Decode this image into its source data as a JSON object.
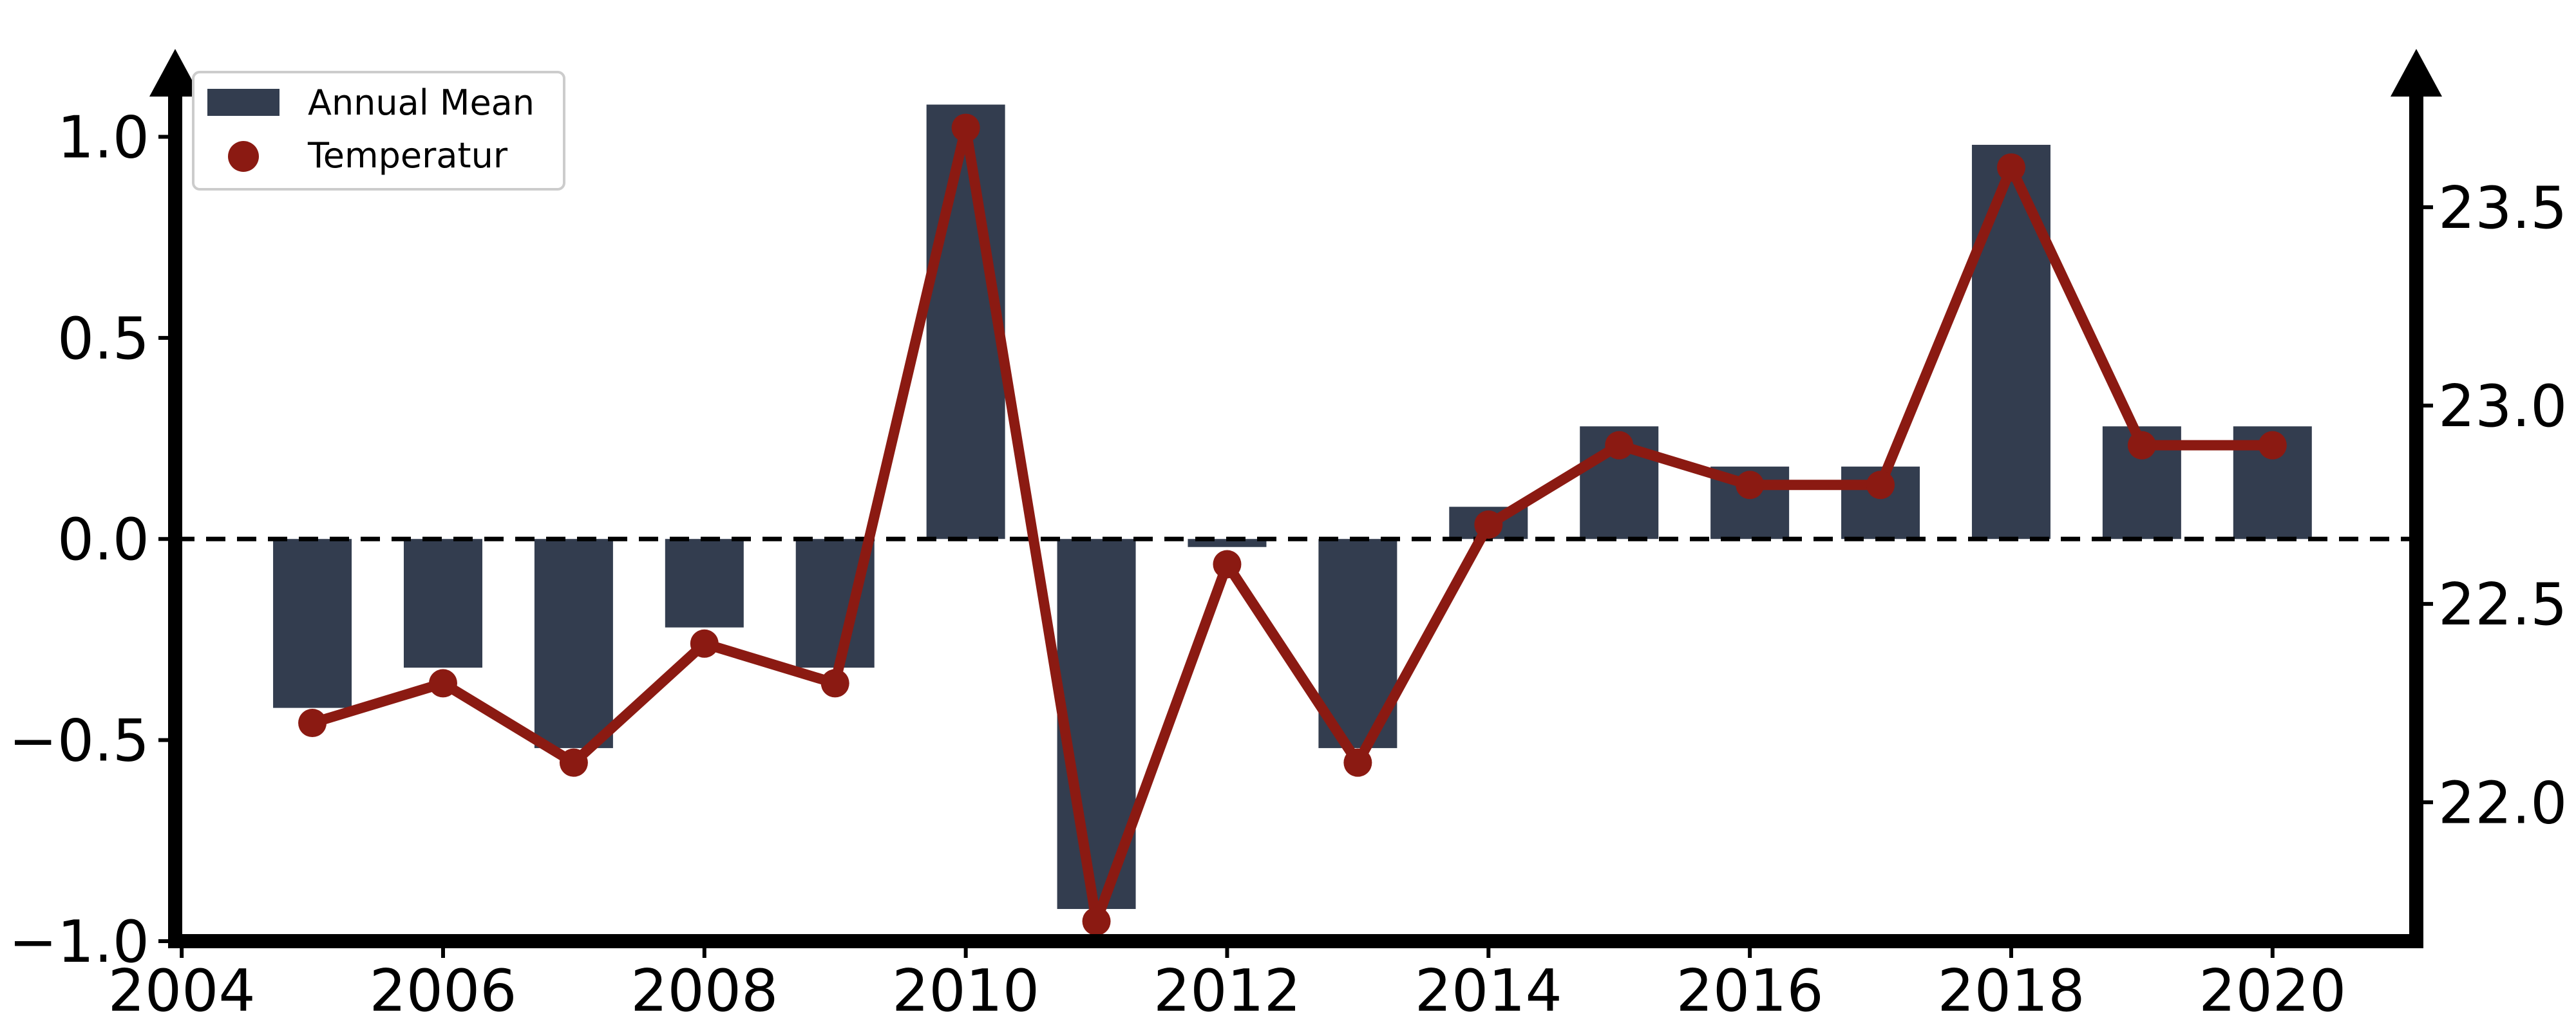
{
  "chart_data": {
    "type": "bar",
    "title": "",
    "xlabel": "",
    "ylabel": "",
    "y2label": "",
    "x": [
      2005,
      2006,
      2007,
      2008,
      2009,
      2010,
      2011,
      2012,
      2013,
      2014,
      2015,
      2016,
      2017,
      2018,
      2019,
      2020
    ],
    "series": [
      {
        "name": "Annual Mean",
        "type": "bar",
        "axis": "left",
        "color": "#333d4f",
        "values": [
          -0.42,
          -0.32,
          -0.52,
          -0.22,
          -0.32,
          1.08,
          -0.92,
          -0.02,
          -0.52,
          0.08,
          0.28,
          0.18,
          0.18,
          0.98,
          0.28,
          0.28
        ]
      },
      {
        "name": "Temperatur",
        "type": "line",
        "axis": "right",
        "color": "#8b1a12",
        "values": [
          22.2,
          22.3,
          22.1,
          22.4,
          22.3,
          23.7,
          21.7,
          22.6,
          22.1,
          22.7,
          22.9,
          22.8,
          22.8,
          23.6,
          22.9,
          22.9
        ]
      }
    ],
    "xlim": [
      2003.95,
      2021.1
    ],
    "ylim": [
      -1.0,
      1.18
    ],
    "y2lim": [
      21.65,
      23.86
    ],
    "xticks": [
      "2004",
      "2006",
      "2008",
      "2010",
      "2012",
      "2014",
      "2016",
      "2018",
      "2020"
    ],
    "yticks": [
      "−1.0",
      "−0.5",
      "0.0",
      "0.5",
      "1.0"
    ],
    "y2ticks": [
      "22.0",
      "22.5",
      "23.0",
      "23.5"
    ],
    "reference_line": {
      "y": 0,
      "style": "dashed",
      "color": "#000000"
    },
    "grid": false,
    "legend": {
      "position": "top-left",
      "entries": [
        "Annual Mean",
        "Temperatur"
      ]
    }
  }
}
